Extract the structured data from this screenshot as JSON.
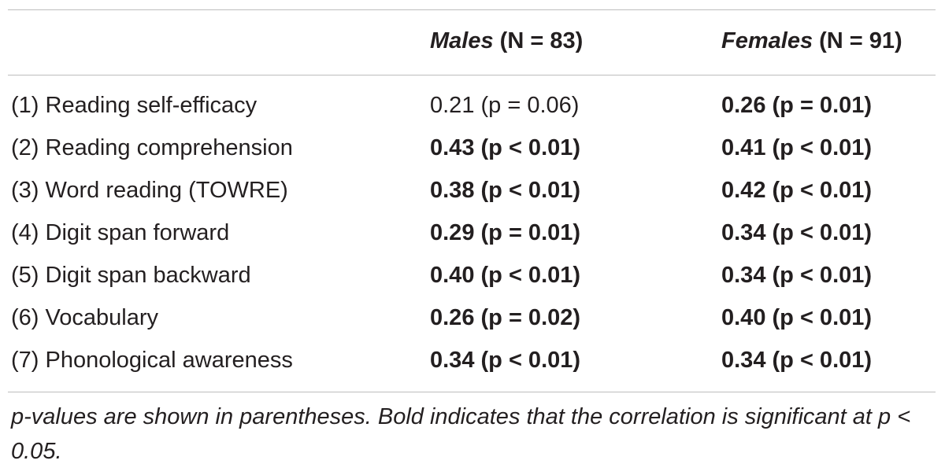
{
  "table": {
    "headers": {
      "males": {
        "group": "Males",
        "n": "(N = 83)"
      },
      "females": {
        "group": "Females",
        "n": "(N = 91)"
      }
    },
    "rows": [
      {
        "label": "(1) Reading self-efficacy",
        "males": {
          "r": "0.21",
          "p": "(p = 0.06)",
          "bold": false
        },
        "females": {
          "r": "0.26",
          "p": "(p = 0.01)",
          "bold": true
        }
      },
      {
        "label": "(2) Reading comprehension",
        "males": {
          "r": "0.43",
          "p": "(p < 0.01)",
          "bold": true
        },
        "females": {
          "r": "0.41",
          "p": "(p < 0.01)",
          "bold": true
        }
      },
      {
        "label": "(3) Word reading (TOWRE)",
        "males": {
          "r": "0.38",
          "p": "(p < 0.01)",
          "bold": true
        },
        "females": {
          "r": "0.42",
          "p": "(p < 0.01)",
          "bold": true
        }
      },
      {
        "label": "(4) Digit span forward",
        "males": {
          "r": "0.29",
          "p": "(p = 0.01)",
          "bold": true
        },
        "females": {
          "r": "0.34",
          "p": "(p < 0.01)",
          "bold": true
        }
      },
      {
        "label": "(5) Digit span backward",
        "males": {
          "r": "0.40",
          "p": "(p < 0.01)",
          "bold": true
        },
        "females": {
          "r": "0.34",
          "p": "(p < 0.01)",
          "bold": true
        }
      },
      {
        "label": "(6) Vocabulary",
        "males": {
          "r": "0.26",
          "p": "(p = 0.02)",
          "bold": true
        },
        "females": {
          "r": "0.40",
          "p": "(p < 0.01)",
          "bold": true
        }
      },
      {
        "label": "(7) Phonological awareness",
        "males": {
          "r": "0.34",
          "p": "(p < 0.01)",
          "bold": true
        },
        "females": {
          "r": "0.34",
          "p": "(p < 0.01)",
          "bold": true
        }
      }
    ],
    "footnote": "p-values are shown in parentheses. Bold indicates that the correlation is significant at p < 0.05."
  }
}
